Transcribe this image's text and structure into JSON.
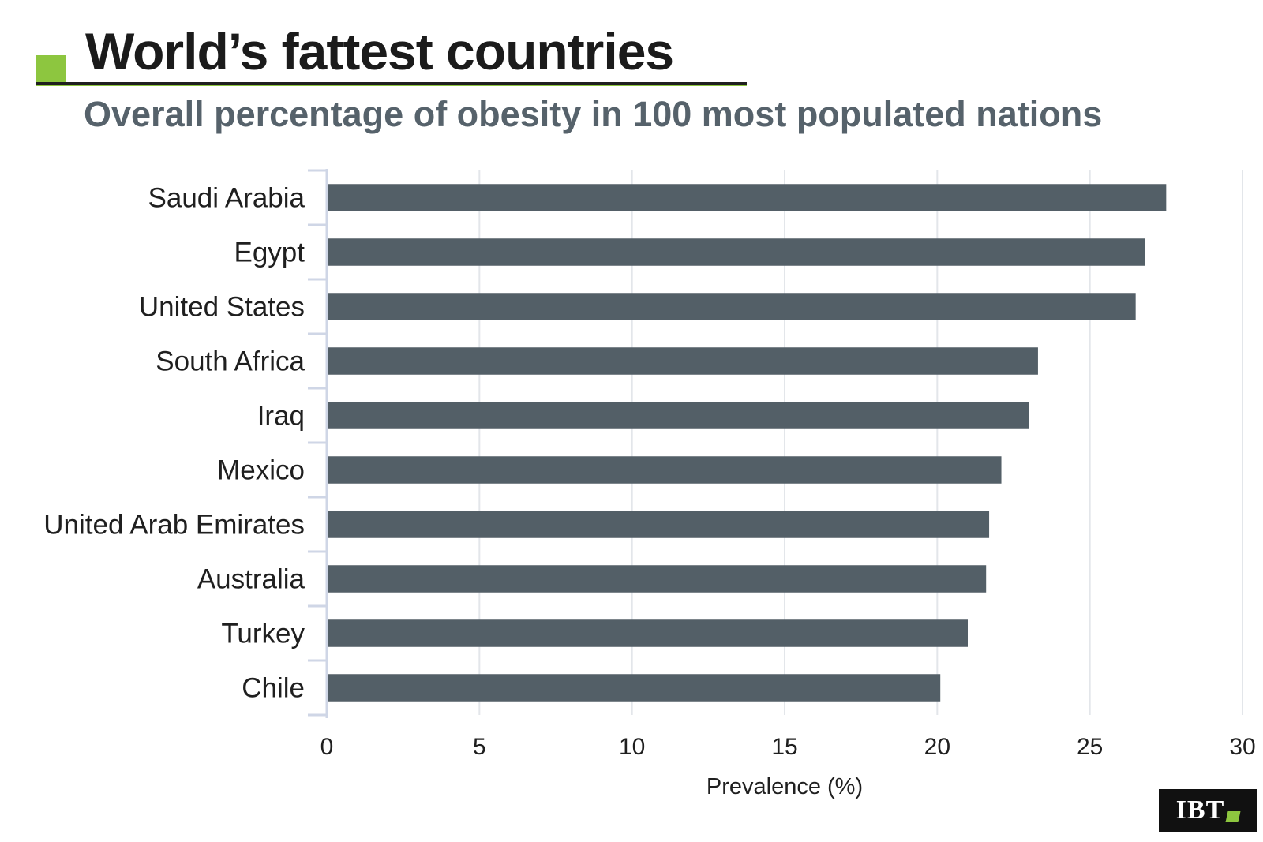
{
  "header": {
    "title": "World’s fattest countries",
    "subtitle": "Overall percentage of obesity in 100 most populated nations"
  },
  "logo": {
    "text": "IBT"
  },
  "colors": {
    "bar": "#535f67",
    "accent": "#8dc63f",
    "grid": "#e3e6ea",
    "axis": "#cfd6e6",
    "subtitle": "#56626b"
  },
  "chart_data": {
    "type": "bar",
    "orientation": "horizontal",
    "title": "World’s fattest countries",
    "subtitle": "Overall percentage of obesity in 100 most populated nations",
    "categories": [
      "Saudi Arabia",
      "Egypt",
      "United States",
      "South Africa",
      "Iraq",
      "Mexico",
      "United Arab Emirates",
      "Australia",
      "Turkey",
      "Chile"
    ],
    "values": [
      27.5,
      26.8,
      26.5,
      23.3,
      23.0,
      22.1,
      21.7,
      21.6,
      21.0,
      20.1
    ],
    "xlabel": "Prevalence (%)",
    "ylabel": "",
    "xlim": [
      0,
      30
    ],
    "xticks": [
      0,
      5,
      10,
      15,
      20,
      25,
      30
    ],
    "xtick_labels": [
      "0",
      "5",
      "10",
      "15",
      "20",
      "25",
      "30"
    ],
    "grid": "vertical",
    "legend": "none"
  }
}
